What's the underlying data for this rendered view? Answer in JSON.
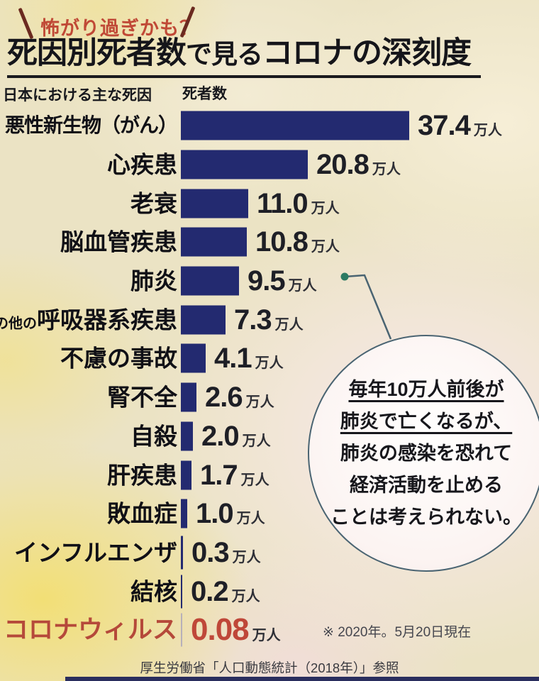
{
  "colors": {
    "bar": "#232a70",
    "highlight_red": "#b5493a",
    "kicker_red": "#c04936",
    "circle_border": "#4a6472",
    "connector": "#4a6472",
    "dot_green": "#2c7a63",
    "background_cream": "#ebe3c4"
  },
  "chart_data": {
    "type": "bar",
    "orientation": "horizontal",
    "kicker": "怖がり過ぎかも？",
    "title": {
      "full": "死因別死者数で見るコロナの深刻度",
      "strong1": "死因別死者数",
      "mid": "で見る",
      "strong2": "コロナの深刻度"
    },
    "category_header": "日本における主な死因",
    "value_header": "死者数",
    "unit": "万人",
    "xlim": [
      0,
      40
    ],
    "rows": [
      {
        "label": "悪性新生物（がん）",
        "value": 37.4,
        "value_text": "37.4"
      },
      {
        "label": "心疾患",
        "value": 20.8,
        "value_text": "20.8"
      },
      {
        "label": "老衰",
        "value": 11.0,
        "value_text": "11.0"
      },
      {
        "label": "脳血管疾患",
        "value": 10.8,
        "value_text": "10.8"
      },
      {
        "label": "肺炎",
        "value": 9.5,
        "value_text": "9.5",
        "annotated": true
      },
      {
        "label_prefix": "の他の",
        "label": "呼吸器系疾患",
        "value": 7.3,
        "value_text": "7.3"
      },
      {
        "label": "不慮の事故",
        "value": 4.1,
        "value_text": "4.1"
      },
      {
        "label": "腎不全",
        "value": 2.6,
        "value_text": "2.6"
      },
      {
        "label": "自殺",
        "value": 2.0,
        "value_text": "2.0"
      },
      {
        "label": "肝疾患",
        "value": 1.7,
        "value_text": "1.7"
      },
      {
        "label": "敗血症",
        "value": 1.0,
        "value_text": "1.0"
      },
      {
        "label": "インフルエンザ",
        "value": 0.3,
        "value_text": "0.3"
      },
      {
        "label": "結核",
        "value": 0.2,
        "value_text": "0.2"
      },
      {
        "label": "コロナウィルス",
        "value": 0.08,
        "value_text": "0.08",
        "highlight": true
      }
    ],
    "annotation": {
      "lines": [
        "毎年10万人前後が",
        "肺炎で亡くなるが、",
        "肺炎の感染を恐れて",
        "経済活動を止める",
        "ことは考えられない。"
      ],
      "underline_lines": 2
    },
    "note": "※ 2020年。5月20日現在",
    "source": "厚生労働省「人口動態統計（2018年）」参照"
  }
}
